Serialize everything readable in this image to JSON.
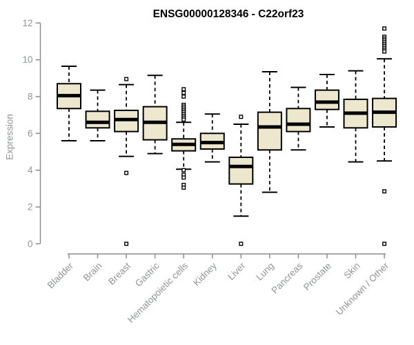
{
  "title": "ENSG00000128346 - C22orf23",
  "chart_data": {
    "type": "boxplot",
    "title": "ENSG00000128346 - C22orf23",
    "xlabel": "",
    "ylabel": "Expression",
    "ylim": [
      0,
      12
    ],
    "yticks": [
      0,
      2,
      4,
      6,
      8,
      10,
      12
    ],
    "grid": false,
    "legend": false,
    "categories": [
      "Bladder",
      "Brain",
      "Breast",
      "Gastric",
      "Hematopoietic cells",
      "Kidney",
      "Liver",
      "Lung",
      "Pancreas",
      "Prostate",
      "Skin",
      "Unknown / Other"
    ],
    "boxes": [
      {
        "label": "Bladder",
        "whisker_low": 5.6,
        "q1": 7.35,
        "median": 8.05,
        "q3": 8.7,
        "whisker_high": 9.65,
        "outliers": []
      },
      {
        "label": "Brain",
        "whisker_low": 5.6,
        "q1": 6.3,
        "median": 6.6,
        "q3": 7.2,
        "whisker_high": 8.35,
        "outliers": []
      },
      {
        "label": "Breast",
        "whisker_low": 4.75,
        "q1": 6.1,
        "median": 6.75,
        "q3": 7.25,
        "whisker_high": 8.65,
        "outliers": [
          8.95,
          3.85,
          0
        ]
      },
      {
        "label": "Gastric",
        "whisker_low": 4.9,
        "q1": 5.65,
        "median": 6.6,
        "q3": 7.45,
        "whisker_high": 9.15,
        "outliers": []
      },
      {
        "label": "Hematopoietic cells",
        "whisker_low": 4.05,
        "q1": 5.05,
        "median": 5.4,
        "q3": 5.7,
        "whisker_high": 6.6,
        "outliers": [
          8.4,
          8.2,
          8.0,
          7.55,
          7.45,
          7.35,
          7.25,
          7.15,
          7.05,
          6.95,
          6.85,
          6.75,
          4.0,
          3.75,
          3.6,
          3.2,
          3.05
        ]
      },
      {
        "label": "Kidney",
        "whisker_low": 4.45,
        "q1": 5.15,
        "median": 5.5,
        "q3": 6.0,
        "whisker_high": 7.05,
        "outliers": []
      },
      {
        "label": "Liver",
        "whisker_low": 1.5,
        "q1": 3.25,
        "median": 4.2,
        "q3": 4.7,
        "whisker_high": 6.5,
        "outliers": [
          6.9,
          0
        ]
      },
      {
        "label": "Lung",
        "whisker_low": 2.8,
        "q1": 5.1,
        "median": 6.35,
        "q3": 7.15,
        "whisker_high": 9.35,
        "outliers": []
      },
      {
        "label": "Pancreas",
        "whisker_low": 5.1,
        "q1": 6.1,
        "median": 6.5,
        "q3": 7.35,
        "whisker_high": 8.5,
        "outliers": []
      },
      {
        "label": "Prostate",
        "whisker_low": 6.35,
        "q1": 7.3,
        "median": 7.7,
        "q3": 8.35,
        "whisker_high": 9.2,
        "outliers": []
      },
      {
        "label": "Skin",
        "whisker_low": 4.45,
        "q1": 6.3,
        "median": 7.1,
        "q3": 7.85,
        "whisker_high": 9.4,
        "outliers": []
      },
      {
        "label": "Unknown / Other",
        "whisker_low": 4.5,
        "q1": 6.35,
        "median": 7.15,
        "q3": 7.9,
        "whisker_high": 10.05,
        "outliers": [
          11.7,
          11.25,
          11.15,
          11.05,
          10.95,
          10.85,
          10.75,
          10.65,
          10.55,
          10.45,
          2.85,
          0
        ]
      }
    ],
    "colors": {
      "box_fill": "#EDE8CD",
      "box_border": "#000000",
      "median": "#000000",
      "whisker": "#000000",
      "outlier_fill": "#ffffff",
      "axis_line": "#8C8C8C",
      "tick_text": "#8f9499",
      "title_text": "#000000",
      "background": "#ffffff"
    }
  }
}
